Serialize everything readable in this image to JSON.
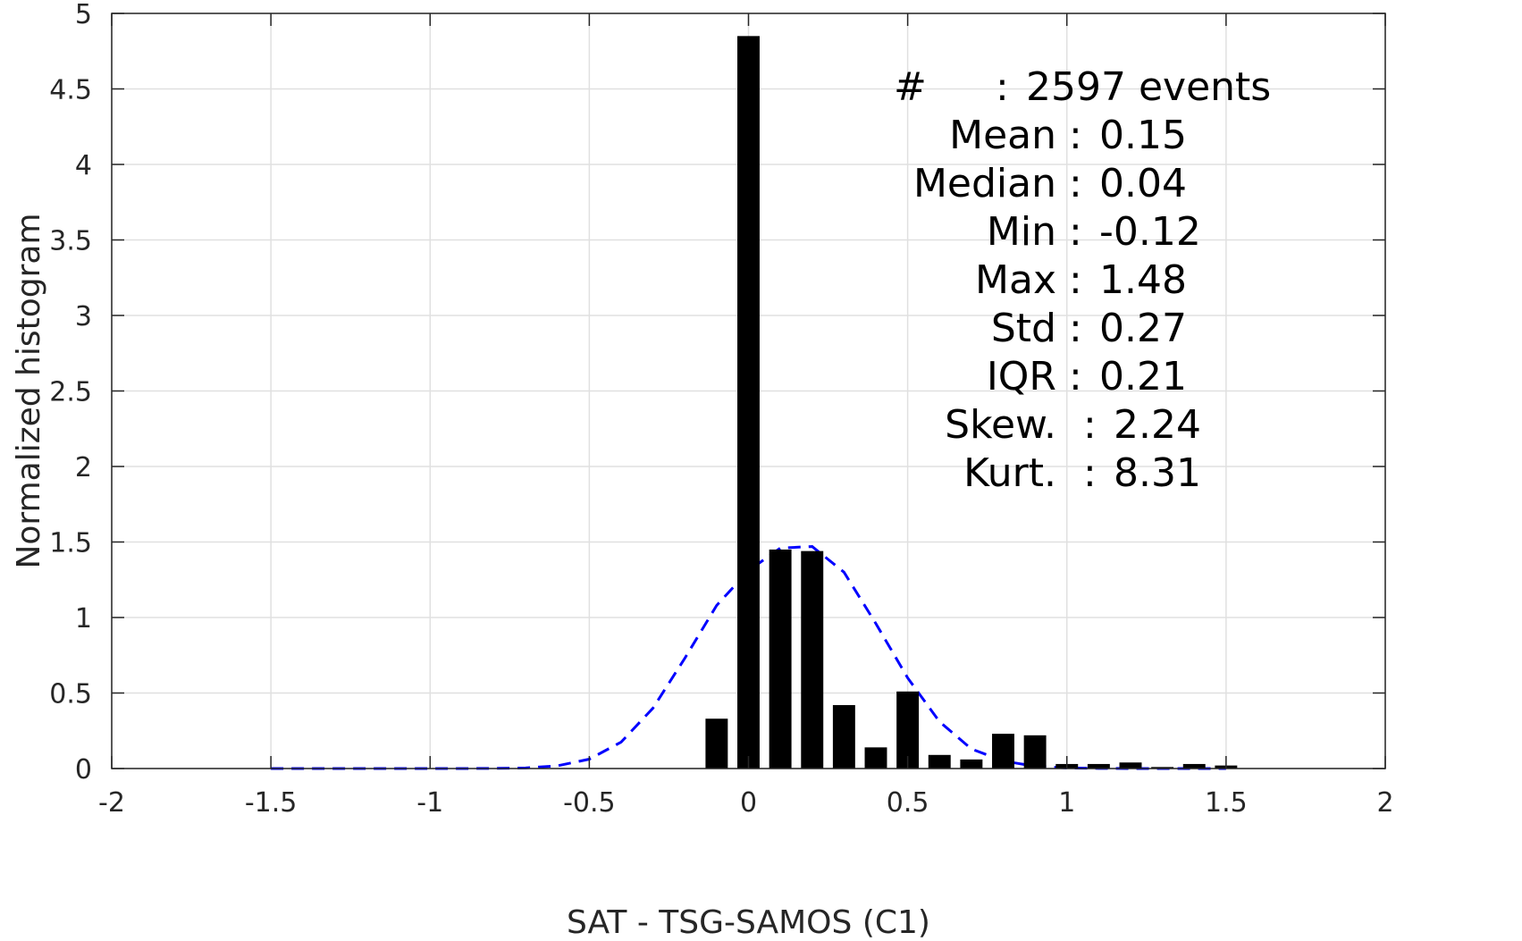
{
  "chart_data": {
    "type": "bar",
    "xlabel": "SAT - TSG-SAMOS (C1)",
    "ylabel": "Normalized histogram",
    "xlim": [
      -2,
      2
    ],
    "ylim": [
      0,
      5
    ],
    "grid": true,
    "x_ticks": [
      "-2",
      "-1.5",
      "-1",
      "-0.5",
      "0",
      "0.5",
      "1",
      "1.5",
      "2"
    ],
    "y_ticks": [
      "0",
      "0.5",
      "1",
      "1.5",
      "2",
      "2.5",
      "3",
      "3.5",
      "4",
      "4.5",
      "5"
    ],
    "bar_color": "#000000",
    "fit_color": "#0000ff",
    "bars": {
      "x": [
        -0.1,
        0.0,
        0.1,
        0.2,
        0.3,
        0.4,
        0.5,
        0.6,
        0.7,
        0.8,
        0.9,
        1.0,
        1.1,
        1.2,
        1.3,
        1.4,
        1.5
      ],
      "values": [
        0.33,
        4.85,
        1.45,
        1.44,
        0.42,
        0.14,
        0.51,
        0.09,
        0.06,
        0.23,
        0.22,
        0.03,
        0.03,
        0.04,
        0.01,
        0.03,
        0.02
      ]
    },
    "fit_curve": {
      "style": "dashed",
      "x": [
        -1.5,
        -1.4,
        -1.3,
        -1.2,
        -1.1,
        -1.0,
        -0.9,
        -0.8,
        -0.7,
        -0.6,
        -0.5,
        -0.4,
        -0.3,
        -0.2,
        -0.1,
        0.0,
        0.1,
        0.2,
        0.3,
        0.4,
        0.5,
        0.6,
        0.7,
        0.8,
        0.9,
        1.0,
        1.1,
        1.2,
        1.3,
        1.4,
        1.5
      ],
      "y": [
        0,
        0,
        0,
        0,
        0,
        0,
        0,
        0.001,
        0.004,
        0.018,
        0.062,
        0.175,
        0.4,
        0.73,
        1.08,
        1.31,
        1.46,
        1.47,
        1.3,
        0.96,
        0.6,
        0.31,
        0.13,
        0.05,
        0.015,
        0.004,
        0.001,
        0,
        0,
        0,
        0
      ]
    },
    "annotation": [
      {
        "label": "#",
        "sep": ":",
        "value": "2597 events"
      },
      {
        "label": "Mean",
        "sep": ":",
        "value": "0.15"
      },
      {
        "label": "Median",
        "sep": ":",
        "value": "0.04"
      },
      {
        "label": "Min",
        "sep": ":",
        "value": "-0.12"
      },
      {
        "label": "Max",
        "sep": ":",
        "value": "1.48"
      },
      {
        "label": "Std",
        "sep": ":",
        "value": "0.27"
      },
      {
        "label": "IQR",
        "sep": ":",
        "value": "0.21"
      },
      {
        "label": "Skew.",
        "sep": ":",
        "value": "2.24"
      },
      {
        "label": "Kurt.",
        "sep": ":",
        "value": "8.31"
      }
    ]
  }
}
